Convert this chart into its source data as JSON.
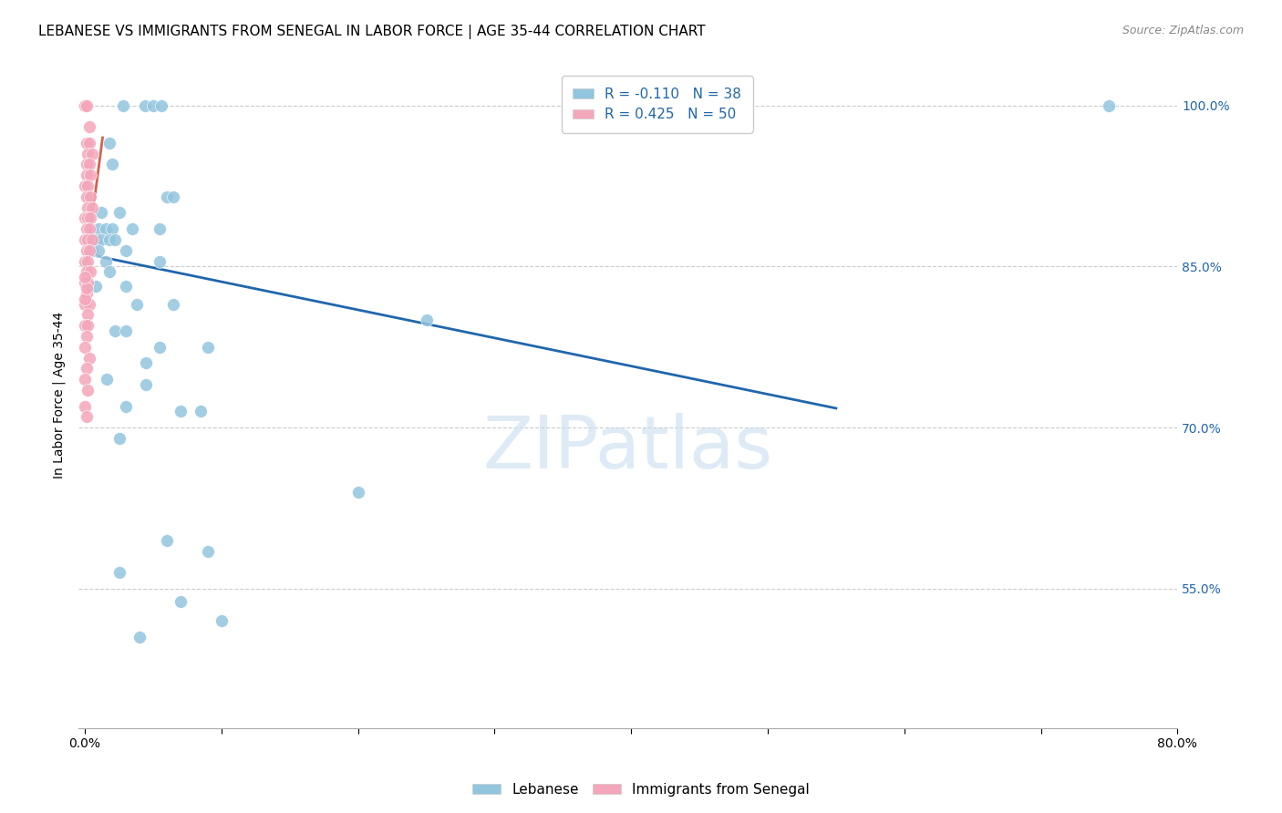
{
  "title": "LEBANESE VS IMMIGRANTS FROM SENEGAL IN LABOR FORCE | AGE 35-44 CORRELATION CHART",
  "source": "Source: ZipAtlas.com",
  "ylabel": "In Labor Force | Age 35-44",
  "xlabel": "",
  "xlim": [
    -0.005,
    0.8
  ],
  "ylim": [
    0.42,
    1.04
  ],
  "yticks": [
    0.55,
    0.7,
    0.85,
    1.0
  ],
  "ytick_labels": [
    "55.0%",
    "70.0%",
    "85.0%",
    "100.0%"
  ],
  "xticks": [
    0.0,
    0.1,
    0.2,
    0.3,
    0.4,
    0.5,
    0.6,
    0.7,
    0.8
  ],
  "xtick_labels": [
    "0.0%",
    "",
    "",
    "",
    "",
    "",
    "",
    "",
    "80.0%"
  ],
  "blue_line_x": [
    0.0,
    0.55
  ],
  "blue_line_y": [
    0.862,
    0.718
  ],
  "pink_line_x": [
    0.0,
    0.013
  ],
  "pink_line_y": [
    0.845,
    0.97
  ],
  "watermark": "ZIPatlas",
  "background_color": "#ffffff",
  "grid_color": "#cccccc",
  "blue_color": "#92c5de",
  "pink_color": "#f4a6ba",
  "blue_line_color": "#2166ac",
  "pink_line_color": "#d6604d",
  "blue_points": [
    [
      0.028,
      1.0
    ],
    [
      0.044,
      1.0
    ],
    [
      0.05,
      1.0
    ],
    [
      0.056,
      1.0
    ],
    [
      0.75,
      1.0
    ],
    [
      0.018,
      0.965
    ],
    [
      0.02,
      0.945
    ],
    [
      0.06,
      0.915
    ],
    [
      0.065,
      0.915
    ],
    [
      0.012,
      0.9
    ],
    [
      0.025,
      0.9
    ],
    [
      0.01,
      0.885
    ],
    [
      0.015,
      0.885
    ],
    [
      0.02,
      0.885
    ],
    [
      0.035,
      0.885
    ],
    [
      0.055,
      0.885
    ],
    [
      0.008,
      0.875
    ],
    [
      0.012,
      0.875
    ],
    [
      0.018,
      0.875
    ],
    [
      0.022,
      0.875
    ],
    [
      0.005,
      0.865
    ],
    [
      0.01,
      0.865
    ],
    [
      0.03,
      0.865
    ],
    [
      0.015,
      0.855
    ],
    [
      0.055,
      0.855
    ],
    [
      0.018,
      0.845
    ],
    [
      0.008,
      0.832
    ],
    [
      0.03,
      0.832
    ],
    [
      0.038,
      0.815
    ],
    [
      0.065,
      0.815
    ],
    [
      0.25,
      0.8
    ],
    [
      0.022,
      0.79
    ],
    [
      0.03,
      0.79
    ],
    [
      0.055,
      0.775
    ],
    [
      0.09,
      0.775
    ],
    [
      0.045,
      0.76
    ],
    [
      0.016,
      0.745
    ],
    [
      0.045,
      0.74
    ],
    [
      0.03,
      0.72
    ],
    [
      0.07,
      0.715
    ],
    [
      0.085,
      0.715
    ],
    [
      0.025,
      0.69
    ],
    [
      0.2,
      0.64
    ],
    [
      0.06,
      0.595
    ],
    [
      0.09,
      0.585
    ],
    [
      0.025,
      0.565
    ],
    [
      0.07,
      0.538
    ],
    [
      0.1,
      0.52
    ],
    [
      0.04,
      0.505
    ]
  ],
  "pink_points": [
    [
      0.0,
      1.0
    ],
    [
      0.001,
      1.0
    ],
    [
      0.003,
      0.98
    ],
    [
      0.001,
      0.965
    ],
    [
      0.003,
      0.965
    ],
    [
      0.002,
      0.955
    ],
    [
      0.005,
      0.955
    ],
    [
      0.001,
      0.945
    ],
    [
      0.003,
      0.945
    ],
    [
      0.001,
      0.935
    ],
    [
      0.004,
      0.935
    ],
    [
      0.0,
      0.925
    ],
    [
      0.002,
      0.925
    ],
    [
      0.001,
      0.915
    ],
    [
      0.004,
      0.915
    ],
    [
      0.002,
      0.905
    ],
    [
      0.005,
      0.905
    ],
    [
      0.0,
      0.895
    ],
    [
      0.002,
      0.895
    ],
    [
      0.004,
      0.895
    ],
    [
      0.001,
      0.885
    ],
    [
      0.003,
      0.885
    ],
    [
      0.0,
      0.875
    ],
    [
      0.002,
      0.875
    ],
    [
      0.005,
      0.875
    ],
    [
      0.001,
      0.865
    ],
    [
      0.003,
      0.865
    ],
    [
      0.0,
      0.855
    ],
    [
      0.002,
      0.855
    ],
    [
      0.001,
      0.845
    ],
    [
      0.004,
      0.845
    ],
    [
      0.0,
      0.835
    ],
    [
      0.002,
      0.835
    ],
    [
      0.001,
      0.825
    ],
    [
      0.0,
      0.815
    ],
    [
      0.003,
      0.815
    ],
    [
      0.002,
      0.805
    ],
    [
      0.0,
      0.795
    ],
    [
      0.002,
      0.795
    ],
    [
      0.001,
      0.785
    ],
    [
      0.0,
      0.775
    ],
    [
      0.003,
      0.765
    ],
    [
      0.001,
      0.755
    ],
    [
      0.0,
      0.745
    ],
    [
      0.002,
      0.735
    ],
    [
      0.0,
      0.72
    ],
    [
      0.001,
      0.71
    ],
    [
      0.0,
      0.82
    ],
    [
      0.001,
      0.83
    ],
    [
      0.0,
      0.84
    ]
  ],
  "title_fontsize": 11,
  "axis_label_fontsize": 10,
  "tick_fontsize": 10,
  "legend_fontsize": 11
}
